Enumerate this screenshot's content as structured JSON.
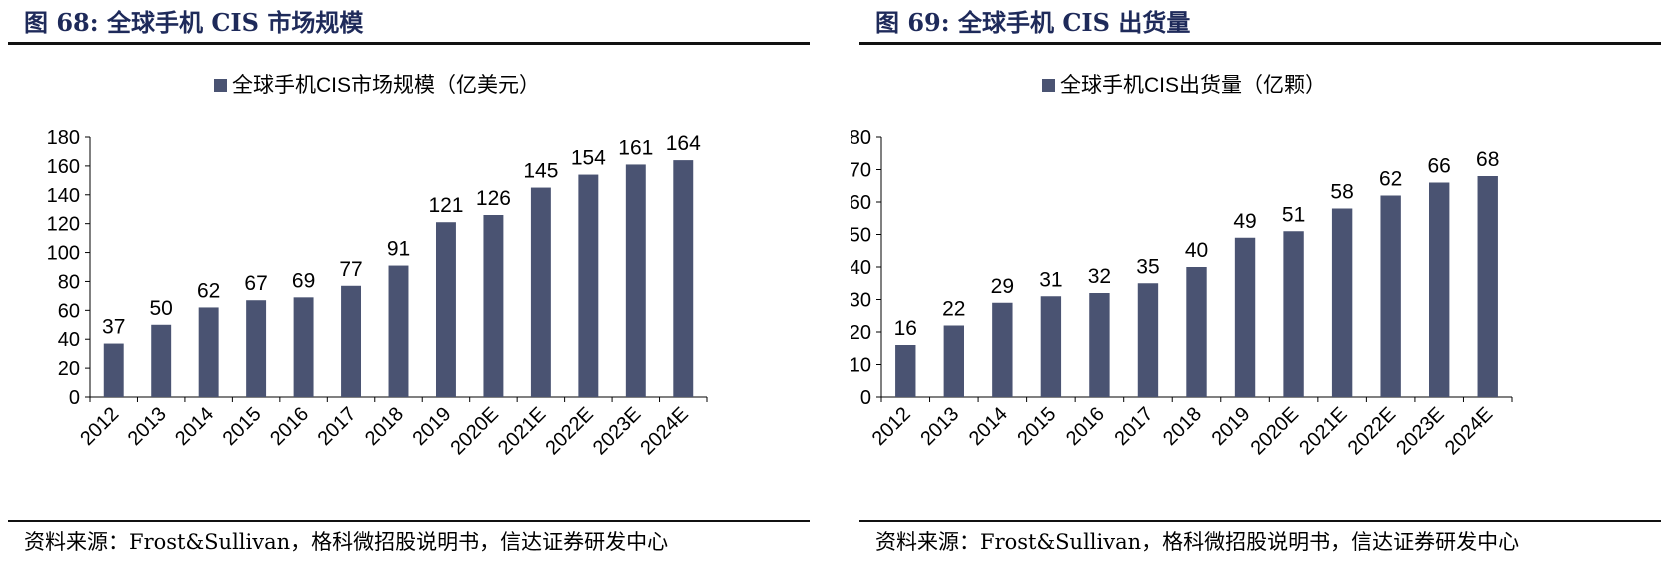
{
  "figures": [
    {
      "title": "图 68:  全球手机 CIS 市场规模",
      "source": "资料来源：Frost&Sullivan，格科微招股说明书，信达证券研发中心"
    },
    {
      "title": "图 69:  全球手机 CIS 出货量",
      "source": "资料来源：Frost&Sullivan，格科微招股说明书，信达证券研发中心"
    }
  ],
  "colors": {
    "bar": "#4a5372",
    "axis": "#000000"
  },
  "chart_data": [
    {
      "type": "bar",
      "categories": [
        "2012",
        "2013",
        "2014",
        "2015",
        "2016",
        "2017",
        "2018",
        "2019",
        "2020E",
        "2021E",
        "2022E",
        "2023E",
        "2024E"
      ],
      "series": [
        {
          "name": "全球手机CIS市场规模（亿美元）",
          "values": [
            37,
            50,
            62,
            67,
            69,
            77,
            91,
            121,
            126,
            145,
            154,
            161,
            164
          ]
        }
      ],
      "ylim": [
        0,
        180
      ],
      "yticks": [
        0,
        20,
        40,
        60,
        80,
        100,
        120,
        140,
        160,
        180
      ],
      "legend": "top-center",
      "grid": false,
      "data_labels": true
    },
    {
      "type": "bar",
      "categories": [
        "2012",
        "2013",
        "2014",
        "2015",
        "2016",
        "2017",
        "2018",
        "2019",
        "2020E",
        "2021E",
        "2022E",
        "2023E",
        "2024E"
      ],
      "series": [
        {
          "name": "全球手机CIS出货量（亿颗）",
          "values": [
            16,
            22,
            29,
            31,
            32,
            35,
            40,
            49,
            51,
            58,
            62,
            66,
            68
          ]
        }
      ],
      "ylim": [
        0,
        80
      ],
      "yticks": [
        0,
        10,
        20,
        30,
        40,
        50,
        60,
        70,
        80
      ],
      "legend": "top-center",
      "grid": false,
      "data_labels": true
    }
  ]
}
